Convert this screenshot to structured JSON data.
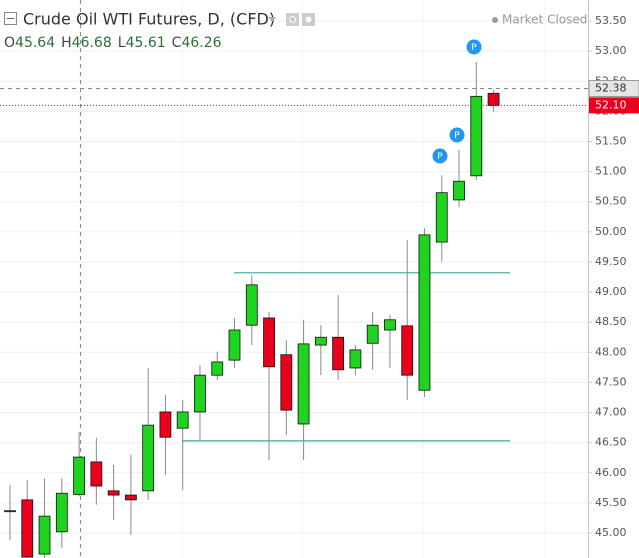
{
  "chart_data": {
    "type": "candlestick",
    "title": "Crude Oil WTI Futures, D, (CFD)",
    "status": "Market Closed",
    "ohlc_letters": [
      "O",
      "H",
      "L",
      "C"
    ],
    "ohlc_values": [
      45.64,
      46.68,
      45.61,
      46.26
    ],
    "series": {
      "up_color": "#1fd41f",
      "down_color": "#e8001c",
      "open": [
        45.37,
        45.55,
        44.65,
        45.02,
        45.64,
        46.18,
        45.7,
        45.63,
        45.7,
        47.01,
        46.74,
        47.01,
        47.62,
        47.87,
        48.45,
        48.57,
        47.96,
        46.81,
        48.12,
        48.25,
        47.74,
        48.15,
        48.37,
        48.44,
        47.37,
        49.83,
        50.53,
        50.93,
        52.3
      ],
      "high": [
        45.8,
        45.88,
        45.91,
        45.91,
        46.68,
        46.58,
        46.13,
        46.3,
        47.74,
        47.29,
        47.21,
        47.79,
        48.01,
        48.57,
        49.28,
        48.67,
        48.2,
        48.54,
        48.45,
        48.95,
        48.12,
        48.67,
        48.62,
        49.86,
        50.06,
        50.94,
        51.36,
        52.82,
        52.35
      ],
      "low": [
        44.88,
        44.5,
        44.5,
        44.75,
        45.61,
        45.47,
        45.22,
        44.97,
        45.55,
        45.96,
        45.71,
        46.54,
        47.54,
        47.74,
        48.12,
        46.21,
        46.63,
        46.21,
        47.62,
        47.54,
        47.62,
        47.71,
        47.74,
        47.21,
        47.26,
        49.5,
        50.41,
        50.86,
        51.99
      ],
      "close": [
        45.37,
        44.6,
        45.28,
        45.66,
        46.26,
        45.78,
        45.63,
        45.55,
        46.79,
        46.59,
        47.01,
        47.62,
        47.84,
        48.37,
        49.12,
        47.76,
        47.04,
        48.14,
        48.25,
        47.71,
        48.04,
        48.45,
        48.54,
        47.62,
        49.95,
        50.65,
        50.84,
        52.25,
        52.1
      ]
    },
    "levels": [
      49.32,
      46.53
    ],
    "level_color": "#3fa79a",
    "markers": [
      "P",
      "P",
      "P"
    ],
    "crosshair_price": 52.38,
    "last_price": {
      "value": 52.1,
      "label": "52.10"
    },
    "ylim": [
      44.585,
      53.849
    ],
    "yticks": [
      {
        "value": 53.5,
        "label": "53.50"
      },
      {
        "value": 53.0,
        "label": "53.00"
      },
      {
        "value": 52.5,
        "label": "52.50"
      },
      {
        "value": 52.0,
        "label": "52.00"
      },
      {
        "value": 51.5,
        "label": "51.50"
      },
      {
        "value": 51.0,
        "label": "51.00"
      },
      {
        "value": 50.5,
        "label": "50.50"
      },
      {
        "value": 50.0,
        "label": "50.00"
      },
      {
        "value": 49.5,
        "label": "49.50"
      },
      {
        "value": 49.0,
        "label": "49.00"
      },
      {
        "value": 48.5,
        "label": "48.50"
      },
      {
        "value": 48.0,
        "label": "48.00"
      },
      {
        "value": 47.5,
        "label": "47.50"
      },
      {
        "value": 47.0,
        "label": "47.00"
      },
      {
        "value": 46.5,
        "label": "46.50"
      },
      {
        "value": 46.0,
        "label": "46.00"
      },
      {
        "value": 45.5,
        "label": "45.50"
      },
      {
        "value": 45.0,
        "label": "45.00"
      }
    ],
    "grid": true
  }
}
